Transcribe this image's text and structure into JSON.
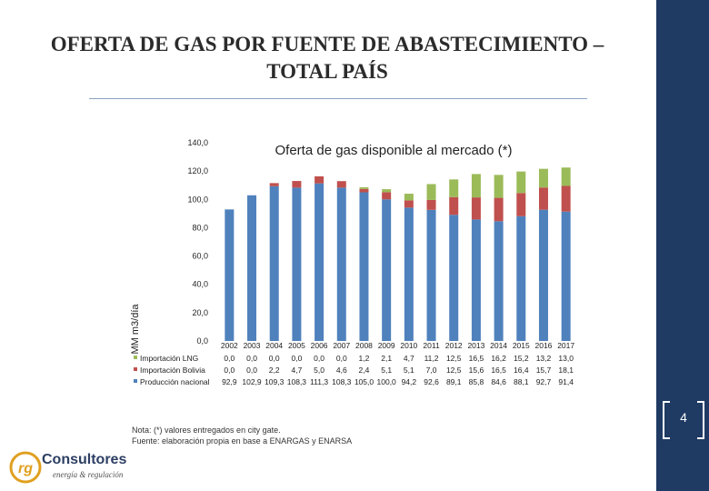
{
  "slide": {
    "title_line1": "OFERTA DE GAS POR FUENTE DE ABASTECIMIENTO –",
    "title_line2": "TOTAL PAÍS",
    "page_number": "4",
    "note_line1": "Nota: (*) valores entregados en city gate.",
    "note_line2": "Fuente: elaboración propia en base a ENARGAS y ENARSA",
    "logo_name": "Consultores",
    "logo_tagline": "energía & regulación",
    "logo_mark": "rg"
  },
  "chart_data": {
    "type": "bar",
    "stacked": true,
    "title": "Oferta de gas disponible al mercado (*)",
    "ylabel": "MM m3/día",
    "ylim": [
      0,
      140
    ],
    "yticks": [
      "0,0",
      "20,0",
      "40,0",
      "60,0",
      "80,0",
      "100,0",
      "120,0",
      "140,0"
    ],
    "categories": [
      "2002",
      "2003",
      "2004",
      "2005",
      "2006",
      "2007",
      "2008",
      "2009",
      "2010",
      "2011",
      "2012",
      "2013",
      "2014",
      "2015",
      "2016",
      "2017"
    ],
    "legend_position": "bottom-table",
    "series": [
      {
        "name": "Producción nacional",
        "color": "#4f81bd",
        "values": [
          92.9,
          102.9,
          109.3,
          108.3,
          111.3,
          108.3,
          105.0,
          100.0,
          94.2,
          92.6,
          89.1,
          85.8,
          84.6,
          88.1,
          92.7,
          91.4
        ],
        "labels": [
          "92,9",
          "102,9",
          "109,3",
          "108,3",
          "111,3",
          "108,3",
          "105,0",
          "100,0",
          "94,2",
          "92,6",
          "89,1",
          "85,8",
          "84,6",
          "88,1",
          "92,7",
          "91,4"
        ]
      },
      {
        "name": "Importación Bolivia",
        "color": "#c0504d",
        "values": [
          0.0,
          0.0,
          2.2,
          4.7,
          5.0,
          4.6,
          2.4,
          5.1,
          5.1,
          7.0,
          12.5,
          15.6,
          16.5,
          16.4,
          15.7,
          18.1
        ],
        "labels": [
          "0,0",
          "0,0",
          "2,2",
          "4,7",
          "5,0",
          "4,6",
          "2,4",
          "5,1",
          "5,1",
          "7,0",
          "12,5",
          "15,6",
          "16,5",
          "16,4",
          "15,7",
          "18,1"
        ]
      },
      {
        "name": "Importación LNG",
        "color": "#9bbb59",
        "values": [
          0.0,
          0.0,
          0.0,
          0.0,
          0.0,
          0.0,
          1.2,
          2.1,
          4.7,
          11.2,
          12.5,
          16.5,
          16.2,
          15.2,
          13.2,
          13.0
        ],
        "labels": [
          "0,0",
          "0,0",
          "0,0",
          "0,0",
          "0,0",
          "0,0",
          "1,2",
          "2,1",
          "4,7",
          "11,2",
          "12,5",
          "16,5",
          "16,2",
          "15,2",
          "13,2",
          "13,0"
        ]
      }
    ]
  }
}
